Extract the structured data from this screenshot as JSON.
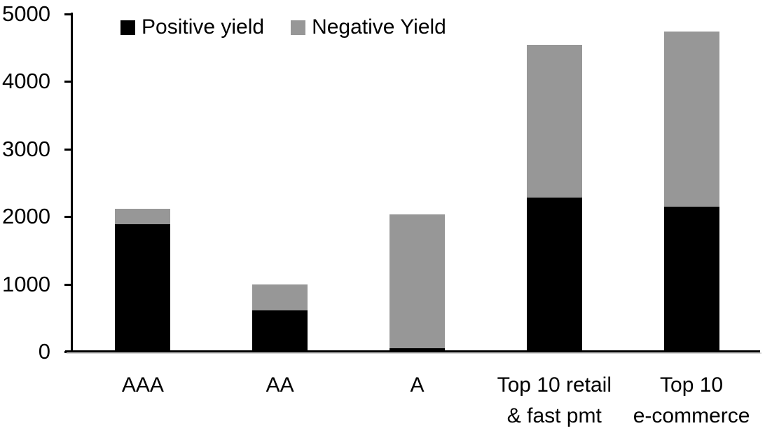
{
  "chart_data": {
    "type": "bar",
    "stacked": true,
    "title": "",
    "categories": [
      "AAA",
      "AA",
      "A",
      "Top 10 retail & fast pmt",
      "Top 10 e-commerce"
    ],
    "category_label_lines": [
      [
        "AAA"
      ],
      [
        "AA"
      ],
      [
        "A"
      ],
      [
        "Top 10 retail",
        "& fast pmt"
      ],
      [
        "Top 10",
        "e-commerce"
      ]
    ],
    "series": [
      {
        "name": "Positive yield",
        "color": "#000000",
        "values": [
          1890,
          615,
          50,
          2280,
          2145
        ]
      },
      {
        "name": "Negative Yield",
        "color": "#979797",
        "values": [
          225,
          385,
          1980,
          2265,
          2595
        ]
      }
    ],
    "stack_totals": [
      2115,
      1000,
      2030,
      4545,
      4740
    ],
    "xlabel": "",
    "ylabel": "",
    "ylim": [
      0,
      5000
    ],
    "yticks": [
      0,
      1000,
      2000,
      3000,
      4000,
      5000
    ],
    "ytick_labels": [
      "0",
      "1000",
      "2000",
      "3000",
      "4000",
      "5000"
    ],
    "grid": false,
    "legend_position": "top",
    "axis_color": "#000000",
    "background_color": "#ffffff"
  }
}
